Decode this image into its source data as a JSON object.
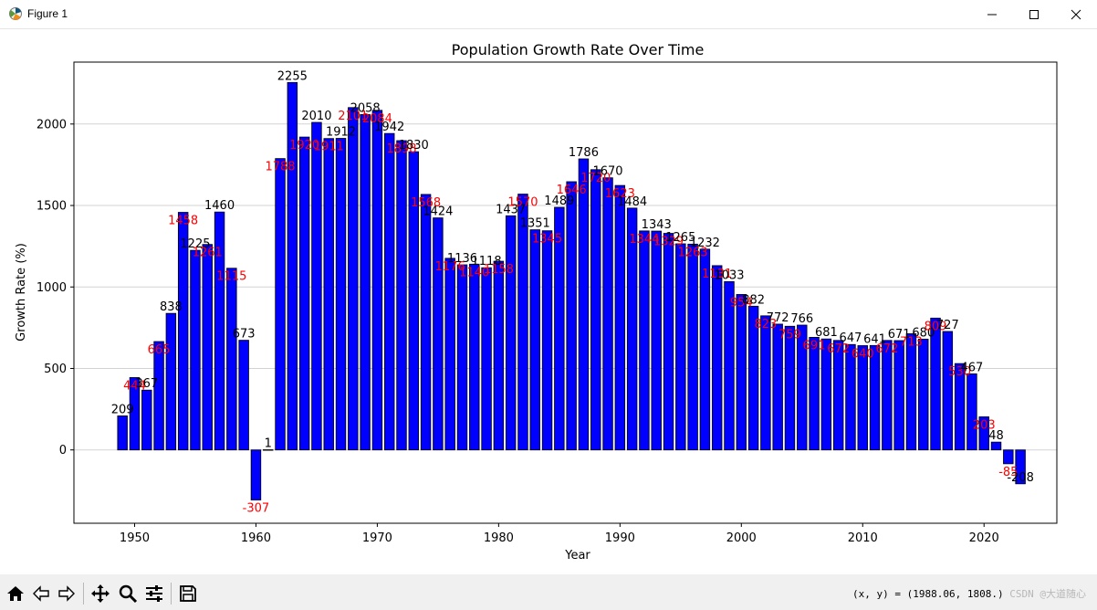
{
  "window": {
    "title": "Figure 1"
  },
  "status": {
    "coords": "(x, y) = (1988.06, 1808.)",
    "watermark": "CSDN @大道随心"
  },
  "colors": {
    "bar": "#0000ff",
    "bar_edge": "#000000",
    "label_odd": "#ff0000",
    "label_even": "#000000",
    "grid": "#d3d3d3"
  },
  "toolbar": {
    "icons": [
      "home-icon",
      "back-arrow-icon",
      "forward-arrow-icon",
      "pan-move-icon",
      "zoom-magnifier-icon",
      "configure-subplots-icon",
      "save-disk-icon"
    ]
  },
  "chart_data": {
    "type": "bar",
    "title": "Population Growth Rate Over Time",
    "xlabel": "Year",
    "ylabel": "Growth Rate (%)",
    "xlim": [
      1945,
      2026
    ],
    "ylim": [
      -450,
      2380
    ],
    "xticks": [
      1950,
      1960,
      1970,
      1980,
      1990,
      2000,
      2010,
      2020
    ],
    "yticks": [
      0,
      500,
      1000,
      1500,
      2000
    ],
    "grid": "horizontal",
    "categories": [
      1949,
      1950,
      1951,
      1952,
      1953,
      1954,
      1955,
      1956,
      1957,
      1958,
      1959,
      1960,
      1961,
      1962,
      1963,
      1964,
      1965,
      1966,
      1967,
      1968,
      1969,
      1970,
      1971,
      1972,
      1973,
      1974,
      1975,
      1976,
      1977,
      1978,
      1979,
      1980,
      1981,
      1982,
      1983,
      1984,
      1985,
      1986,
      1987,
      1988,
      1989,
      1990,
      1991,
      1992,
      1993,
      1994,
      1995,
      1996,
      1997,
      1998,
      1999,
      2000,
      2001,
      2002,
      2003,
      2004,
      2005,
      2006,
      2007,
      2008,
      2009,
      2010,
      2011,
      2012,
      2013,
      2014,
      2015,
      2016,
      2017,
      2018,
      2019,
      2020,
      2021,
      2022,
      2023
    ],
    "values": [
      209,
      444,
      367,
      665,
      838,
      1458,
      1225,
      1261,
      1460,
      1115,
      673,
      -307,
      1,
      1788,
      2255,
      1920,
      2010,
      1911,
      1912,
      2101,
      2058,
      2084,
      1942,
      1898,
      1830,
      1568,
      1424,
      1176,
      1136,
      1140,
      1118,
      1158,
      1437,
      1570,
      1351,
      1345,
      1489,
      1646,
      1786,
      1720,
      1670,
      1623,
      1484,
      1344,
      1343,
      1329,
      1265,
      1263,
      1232,
      1131,
      1033,
      954,
      882,
      823,
      772,
      759,
      766,
      691,
      681,
      672,
      647,
      640,
      641,
      672,
      671,
      713,
      680,
      809,
      727,
      530,
      467,
      203,
      48,
      -85,
      -208
    ],
    "labels": [
      "209",
      "444",
      "367",
      "665",
      "838",
      "1458",
      "1225",
      "1261",
      "1460",
      "1115",
      "673",
      "-307",
      "1",
      "1788",
      "2255",
      "1920",
      "2010",
      "1911",
      "1912",
      "2101",
      "2058",
      "2084",
      "1942",
      "1898",
      "1830",
      "1568",
      "1424",
      "1176",
      "1136",
      "1140",
      "1118",
      "1158",
      "1437",
      "1570",
      "1351",
      "1345",
      "1489",
      "1646",
      "1786",
      "1720",
      "1670",
      "1623",
      "1484",
      "1344",
      "1343",
      "1329",
      "1265",
      "1263",
      "1232",
      "1131",
      "1033",
      "954",
      "882",
      "823",
      "772",
      "759",
      "766",
      "691",
      "681",
      "672",
      "647",
      "640",
      "641",
      "672",
      "671",
      "713",
      "680",
      "809",
      "727",
      "530",
      "467",
      "203",
      "48",
      "-85",
      "-208"
    ]
  }
}
